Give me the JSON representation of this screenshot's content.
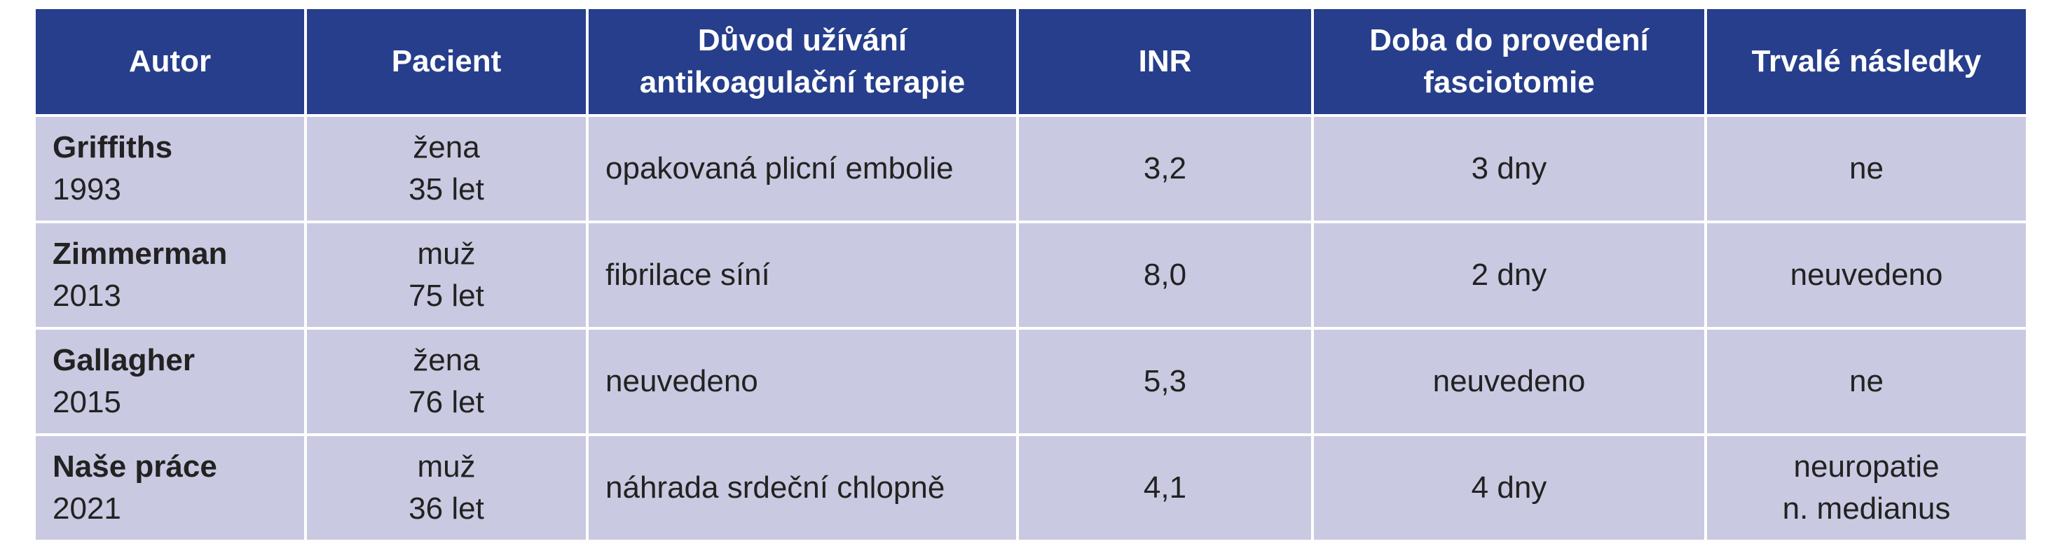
{
  "table": {
    "header": [
      [
        "Autor"
      ],
      [
        "Pacient"
      ],
      [
        "Důvod užívání",
        "antikoagulační terapie"
      ],
      [
        "INR"
      ],
      [
        "Doba do provedení",
        "fasciotomie"
      ],
      [
        "Trvalé následky"
      ]
    ],
    "rows": [
      [
        [
          "Griffiths",
          "1993"
        ],
        [
          "žena",
          "35 let"
        ],
        [
          "opakovaná plicní embolie"
        ],
        [
          "3,2"
        ],
        [
          "3 dny"
        ],
        [
          "ne"
        ]
      ],
      [
        [
          "Zimmerman",
          "2013"
        ],
        [
          "muž",
          "75 let"
        ],
        [
          "fibrilace síní"
        ],
        [
          "8,0"
        ],
        [
          "2 dny"
        ],
        [
          "neuvedeno"
        ]
      ],
      [
        [
          "Gallagher",
          "2015"
        ],
        [
          "žena",
          "76 let"
        ],
        [
          "neuvedeno"
        ],
        [
          "5,3"
        ],
        [
          "neuvedeno"
        ],
        [
          "ne"
        ]
      ],
      [
        [
          "Naše práce",
          "2021"
        ],
        [
          "muž",
          "36 let"
        ],
        [
          "náhrada srdeční chlopně"
        ],
        [
          "4,1"
        ],
        [
          "4 dny"
        ],
        [
          "neuropatie",
          "n. medianus"
        ]
      ]
    ]
  }
}
